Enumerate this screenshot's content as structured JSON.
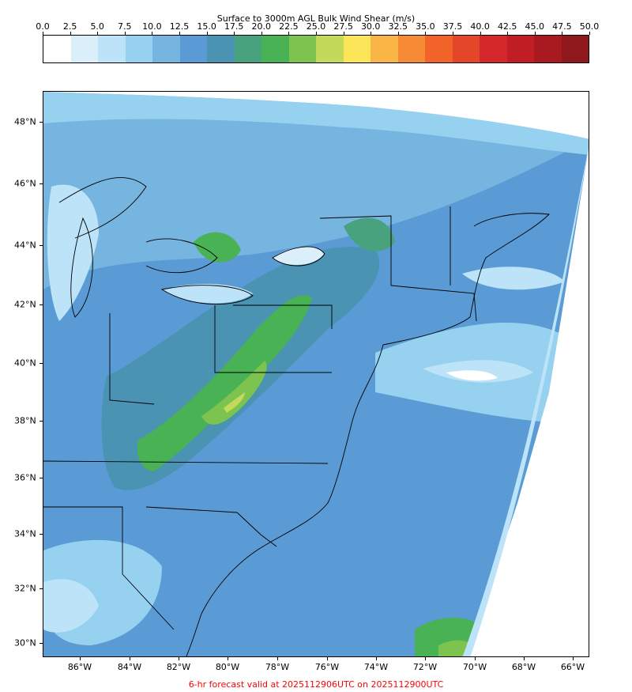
{
  "colorbar": {
    "title": "Surface to 3000m AGL Bulk Wind Shear (m/s)",
    "ticks": [
      "0.0",
      "2.5",
      "5.0",
      "7.5",
      "10.0",
      "12.5",
      "15.0",
      "17.5",
      "20.0",
      "22.5",
      "25.0",
      "27.5",
      "30.0",
      "32.5",
      "35.0",
      "37.5",
      "40.0",
      "42.5",
      "45.0",
      "47.5",
      "50.0"
    ],
    "colors": [
      "#ffffff",
      "#dbeffa",
      "#bce3f7",
      "#97d1f0",
      "#76b5e0",
      "#5b9bd5",
      "#4a93b3",
      "#48a27e",
      "#48b254",
      "#7dc350",
      "#c3d95a",
      "#fde55a",
      "#f9b446",
      "#f78a35",
      "#f2632a",
      "#e34628",
      "#d5282a",
      "#c11d24",
      "#a81a20",
      "#8e181c"
    ]
  },
  "map": {
    "lat_labels": [
      "48°N",
      "46°N",
      "44°N",
      "42°N",
      "40°N",
      "38°N",
      "36°N",
      "34°N",
      "32°N",
      "30°N"
    ],
    "lon_labels": [
      "86°W",
      "84°W",
      "82°W",
      "80°W",
      "78°W",
      "76°W",
      "74°W",
      "72°W",
      "70°W",
      "68°W",
      "66°W"
    ]
  },
  "footer": "6-hr forecast valid at 2025112906UTC on 2025112900UTC"
}
